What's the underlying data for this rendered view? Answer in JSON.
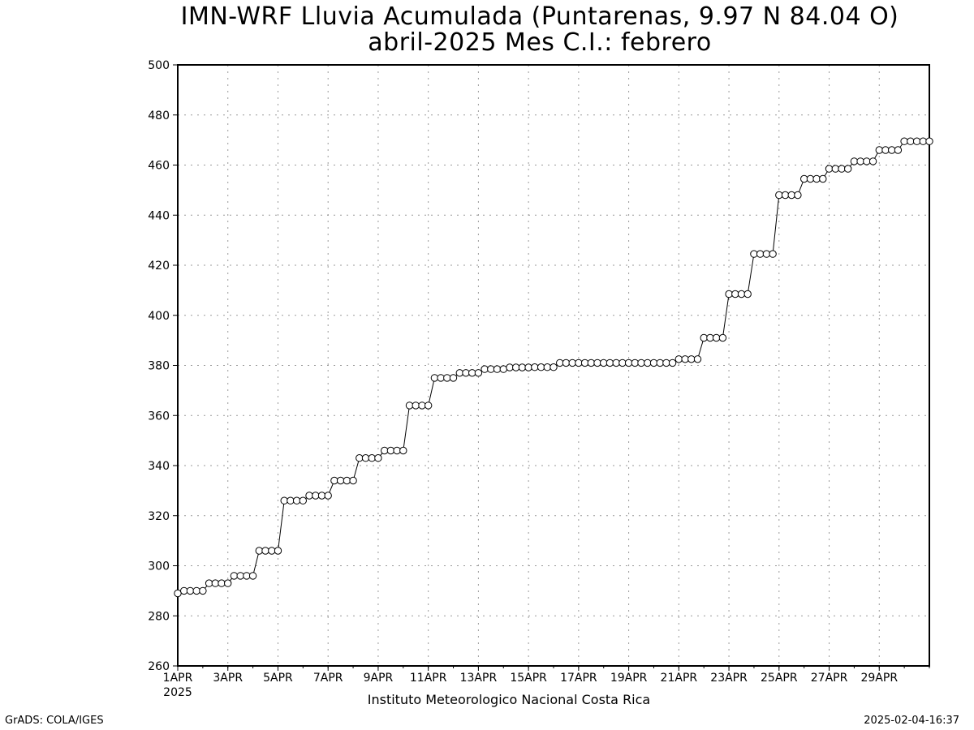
{
  "chart_data": {
    "type": "line",
    "title": "IMN-WRF  Lluvia Acumulada (Puntarenas, 9.97  N 84.04  O)",
    "subtitle": "abril-2025 Mes C.I.: febrero",
    "xlabel": "",
    "ylabel": "",
    "ylim": [
      260,
      500
    ],
    "yticks": [
      260,
      280,
      300,
      320,
      340,
      360,
      380,
      400,
      420,
      440,
      460,
      480,
      500
    ],
    "xlim": [
      "2025-04-01",
      "2025-05-01"
    ],
    "xtick_labels": [
      "1APR",
      "3APR",
      "5APR",
      "7APR",
      "9APR",
      "11APR",
      "13APR",
      "15APR",
      "17APR",
      "19APR",
      "21APR",
      "23APR",
      "25APR",
      "27APR",
      "29APR"
    ],
    "xtick_dates": [
      "2025-04-01",
      "2025-04-03",
      "2025-04-05",
      "2025-04-07",
      "2025-04-09",
      "2025-04-11",
      "2025-04-13",
      "2025-04-15",
      "2025-04-17",
      "2025-04-19",
      "2025-04-21",
      "2025-04-23",
      "2025-04-25",
      "2025-04-27",
      "2025-04-29"
    ],
    "year_label": "2025",
    "grid": true,
    "marker": "open-circle",
    "line_color": "#000000",
    "grid_color": "#999999",
    "series": [
      {
        "name": "",
        "points": [
          [
            "2025-04-01 00:00",
            289.0
          ],
          [
            "2025-04-01 06:00",
            290.0
          ],
          [
            "2025-04-01 12:00",
            290.0
          ],
          [
            "2025-04-01 18:00",
            290.0
          ],
          [
            "2025-04-02 00:00",
            290.0
          ],
          [
            "2025-04-02 06:00",
            293.0
          ],
          [
            "2025-04-02 12:00",
            293.0
          ],
          [
            "2025-04-02 18:00",
            293.0
          ],
          [
            "2025-04-03 00:00",
            293.0
          ],
          [
            "2025-04-03 06:00",
            296.0
          ],
          [
            "2025-04-03 12:00",
            296.0
          ],
          [
            "2025-04-03 18:00",
            296.0
          ],
          [
            "2025-04-04 00:00",
            296.0
          ],
          [
            "2025-04-04 06:00",
            306.0
          ],
          [
            "2025-04-04 12:00",
            306.0
          ],
          [
            "2025-04-04 18:00",
            306.0
          ],
          [
            "2025-04-05 00:00",
            306.0
          ],
          [
            "2025-04-05 06:00",
            326.0
          ],
          [
            "2025-04-05 12:00",
            326.0
          ],
          [
            "2025-04-05 18:00",
            326.0
          ],
          [
            "2025-04-06 00:00",
            326.0
          ],
          [
            "2025-04-06 06:00",
            328.0
          ],
          [
            "2025-04-06 12:00",
            328.0
          ],
          [
            "2025-04-06 18:00",
            328.0
          ],
          [
            "2025-04-07 00:00",
            328.0
          ],
          [
            "2025-04-07 06:00",
            334.0
          ],
          [
            "2025-04-07 12:00",
            334.0
          ],
          [
            "2025-04-07 18:00",
            334.0
          ],
          [
            "2025-04-08 00:00",
            334.0
          ],
          [
            "2025-04-08 06:00",
            343.0
          ],
          [
            "2025-04-08 12:00",
            343.0
          ],
          [
            "2025-04-08 18:00",
            343.0
          ],
          [
            "2025-04-09 00:00",
            343.0
          ],
          [
            "2025-04-09 06:00",
            346.0
          ],
          [
            "2025-04-09 12:00",
            346.0
          ],
          [
            "2025-04-09 18:00",
            346.0
          ],
          [
            "2025-04-10 00:00",
            346.0
          ],
          [
            "2025-04-10 06:00",
            364.0
          ],
          [
            "2025-04-10 12:00",
            364.0
          ],
          [
            "2025-04-10 18:00",
            364.0
          ],
          [
            "2025-04-11 00:00",
            364.0
          ],
          [
            "2025-04-11 06:00",
            375.0
          ],
          [
            "2025-04-11 12:00",
            375.0
          ],
          [
            "2025-04-11 18:00",
            375.0
          ],
          [
            "2025-04-12 00:00",
            375.0
          ],
          [
            "2025-04-12 06:00",
            377.0
          ],
          [
            "2025-04-12 12:00",
            377.0
          ],
          [
            "2025-04-12 18:00",
            377.0
          ],
          [
            "2025-04-13 00:00",
            377.0
          ],
          [
            "2025-04-13 06:00",
            378.5
          ],
          [
            "2025-04-13 12:00",
            378.5
          ],
          [
            "2025-04-13 18:00",
            378.5
          ],
          [
            "2025-04-14 00:00",
            378.5
          ],
          [
            "2025-04-14 06:00",
            379.2
          ],
          [
            "2025-04-14 12:00",
            379.2
          ],
          [
            "2025-04-14 18:00",
            379.2
          ],
          [
            "2025-04-15 00:00",
            379.2
          ],
          [
            "2025-04-15 06:00",
            379.3
          ],
          [
            "2025-04-15 12:00",
            379.3
          ],
          [
            "2025-04-15 18:00",
            379.3
          ],
          [
            "2025-04-16 00:00",
            379.3
          ],
          [
            "2025-04-16 06:00",
            381.0
          ],
          [
            "2025-04-16 12:00",
            381.0
          ],
          [
            "2025-04-16 18:00",
            381.0
          ],
          [
            "2025-04-17 00:00",
            381.0
          ],
          [
            "2025-04-17 06:00",
            381.0
          ],
          [
            "2025-04-17 12:00",
            381.0
          ],
          [
            "2025-04-17 18:00",
            381.0
          ],
          [
            "2025-04-18 00:00",
            381.0
          ],
          [
            "2025-04-18 06:00",
            381.0
          ],
          [
            "2025-04-18 12:00",
            381.0
          ],
          [
            "2025-04-18 18:00",
            381.0
          ],
          [
            "2025-04-19 00:00",
            381.0
          ],
          [
            "2025-04-19 06:00",
            381.0
          ],
          [
            "2025-04-19 12:00",
            381.0
          ],
          [
            "2025-04-19 18:00",
            381.0
          ],
          [
            "2025-04-20 00:00",
            381.0
          ],
          [
            "2025-04-20 06:00",
            381.0
          ],
          [
            "2025-04-20 12:00",
            381.0
          ],
          [
            "2025-04-20 18:00",
            381.0
          ],
          [
            "2025-04-21 00:00",
            382.5
          ],
          [
            "2025-04-21 06:00",
            382.5
          ],
          [
            "2025-04-21 12:00",
            382.5
          ],
          [
            "2025-04-21 18:00",
            382.5
          ],
          [
            "2025-04-22 00:00",
            391.0
          ],
          [
            "2025-04-22 06:00",
            391.0
          ],
          [
            "2025-04-22 12:00",
            391.0
          ],
          [
            "2025-04-22 18:00",
            391.0
          ],
          [
            "2025-04-23 00:00",
            408.5
          ],
          [
            "2025-04-23 06:00",
            408.5
          ],
          [
            "2025-04-23 12:00",
            408.5
          ],
          [
            "2025-04-23 18:00",
            408.5
          ],
          [
            "2025-04-24 00:00",
            424.5
          ],
          [
            "2025-04-24 06:00",
            424.5
          ],
          [
            "2025-04-24 12:00",
            424.5
          ],
          [
            "2025-04-24 18:00",
            424.5
          ],
          [
            "2025-04-25 00:00",
            448.0
          ],
          [
            "2025-04-25 06:00",
            448.0
          ],
          [
            "2025-04-25 12:00",
            448.0
          ],
          [
            "2025-04-25 18:00",
            448.0
          ],
          [
            "2025-04-26 00:00",
            454.5
          ],
          [
            "2025-04-26 06:00",
            454.5
          ],
          [
            "2025-04-26 12:00",
            454.5
          ],
          [
            "2025-04-26 18:00",
            454.5
          ],
          [
            "2025-04-27 00:00",
            458.5
          ],
          [
            "2025-04-27 06:00",
            458.5
          ],
          [
            "2025-04-27 12:00",
            458.5
          ],
          [
            "2025-04-27 18:00",
            458.5
          ],
          [
            "2025-04-28 00:00",
            461.5
          ],
          [
            "2025-04-28 06:00",
            461.5
          ],
          [
            "2025-04-28 12:00",
            461.5
          ],
          [
            "2025-04-28 18:00",
            461.5
          ],
          [
            "2025-04-29 00:00",
            466.0
          ],
          [
            "2025-04-29 06:00",
            466.0
          ],
          [
            "2025-04-29 12:00",
            466.0
          ],
          [
            "2025-04-29 18:00",
            466.0
          ],
          [
            "2025-04-30 00:00",
            469.5
          ],
          [
            "2025-04-30 06:00",
            469.5
          ],
          [
            "2025-04-30 12:00",
            469.5
          ],
          [
            "2025-04-30 18:00",
            469.5
          ],
          [
            "2025-05-01 00:00",
            469.5
          ]
        ]
      }
    ]
  },
  "footer": {
    "institution": "Instituto Meteorologico Nacional Costa Rica",
    "credit_left": "GrADS: COLA/IGES",
    "credit_right": "2025-02-04-16:37"
  }
}
